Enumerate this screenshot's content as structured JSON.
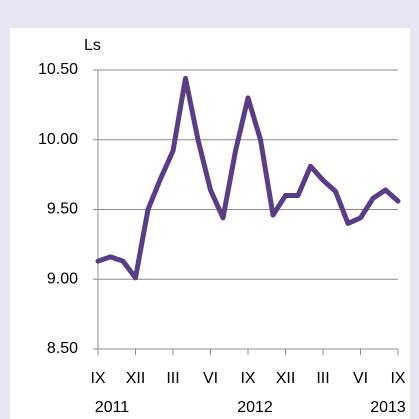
{
  "chart_data": {
    "type": "line",
    "y_axis_label": "Ls",
    "categories": [
      "IX",
      null,
      null,
      "XII",
      null,
      null,
      "III",
      null,
      null,
      "VI",
      null,
      null,
      "IX",
      null,
      null,
      "XII",
      null,
      null,
      "III",
      null,
      null,
      "VI",
      null,
      null,
      "IX"
    ],
    "x_group_labels": [
      "2011",
      "2012",
      "2013"
    ],
    "series": [
      {
        "color": "#5a3d86",
        "values": [
          9.13,
          9.16,
          9.13,
          9.01,
          9.5,
          9.72,
          9.92,
          10.44,
          10.0,
          9.64,
          9.44,
          9.92,
          10.3,
          10.0,
          9.46,
          9.6,
          9.6,
          9.81,
          9.71,
          9.63,
          9.4,
          9.44,
          9.58,
          9.64,
          9.56
        ]
      }
    ],
    "ylim": [
      8.5,
      10.5
    ],
    "yticks": [
      {
        "value": 8.5,
        "label": "8.50"
      },
      {
        "value": 9,
        "label": "9.00"
      },
      {
        "value": 9.5,
        "label": "9.50"
      },
      {
        "value": 10,
        "label": "10.00"
      },
      {
        "value": 10.5,
        "label": "10.50"
      }
    ],
    "grid": true
  }
}
